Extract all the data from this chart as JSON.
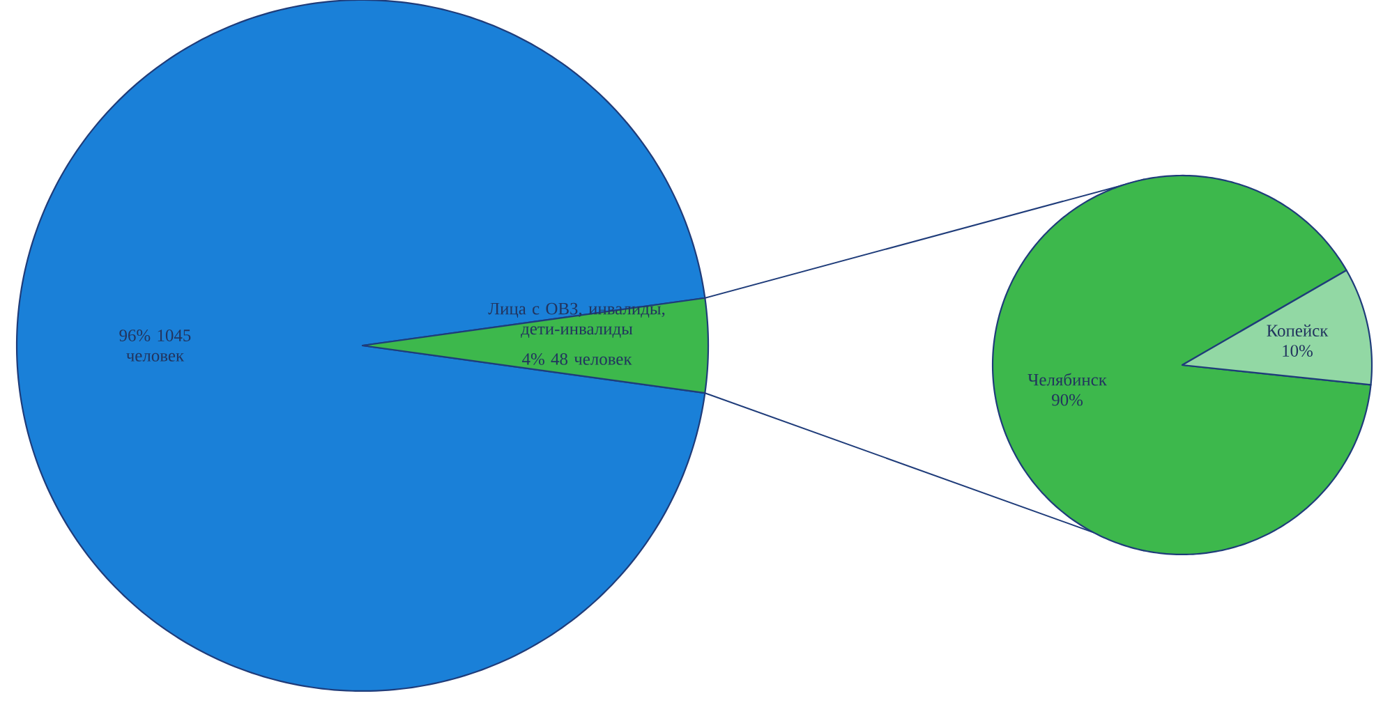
{
  "chart_data": [
    {
      "type": "pie",
      "categories": [
        null,
        "Лица с ОВЗ, инвалиды, дети-инвалиды"
      ],
      "values": [
        1045,
        48
      ],
      "value_labels": [
        "96% 1045 человек",
        "4% 48 человек"
      ],
      "colors": [
        "#1a80d8",
        "#3db84c"
      ]
    },
    {
      "type": "pie",
      "categories": [
        "Челябинск",
        "Копейск"
      ],
      "values": [
        90,
        10
      ],
      "value_labels": [
        "90%",
        "10%"
      ],
      "colors": [
        "#3db84c",
        "#92d8a4"
      ]
    }
  ]
}
